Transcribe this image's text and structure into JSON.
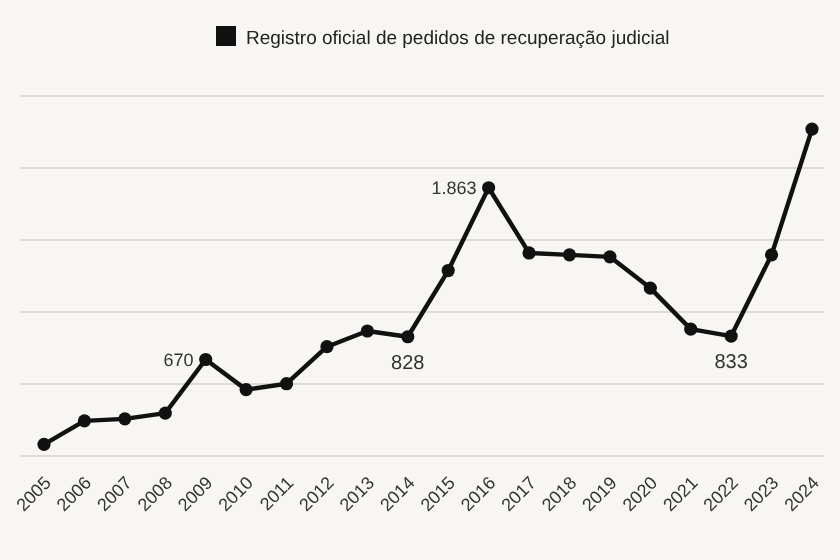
{
  "chart_data": {
    "type": "line",
    "categories": [
      "2005",
      "2006",
      "2007",
      "2008",
      "2009",
      "2010",
      "2011",
      "2012",
      "2013",
      "2014",
      "2015",
      "2016",
      "2017",
      "2018",
      "2019",
      "2020",
      "2021",
      "2022",
      "2023",
      "2024"
    ],
    "series": [
      {
        "name": "Registro oficial de pedidos de recuperação judicial",
        "color": "#111111",
        "values": [
          81,
          244,
          258,
          298,
          670,
          461,
          502,
          759,
          868,
          828,
          1288,
          1863,
          1410,
          1397,
          1383,
          1166,
          881,
          833,
          1397,
          2270
        ],
        "value_labels": [
          null,
          null,
          null,
          null,
          "670",
          null,
          null,
          null,
          null,
          "828",
          null,
          "1.863",
          null,
          null,
          null,
          null,
          null,
          "833",
          null,
          null
        ]
      }
    ],
    "ylim": [
      0,
      2500
    ],
    "yticks": [
      {
        "value": 0,
        "label": null
      },
      {
        "value": 500,
        "label": null
      },
      {
        "value": 1000,
        "label": null
      },
      {
        "value": 1500,
        "label": null
      },
      {
        "value": 2000,
        "label": null
      },
      {
        "value": 2500,
        "label": null
      }
    ],
    "grid": "y",
    "legend": "top",
    "marker": "circle",
    "line_style": "solid"
  }
}
